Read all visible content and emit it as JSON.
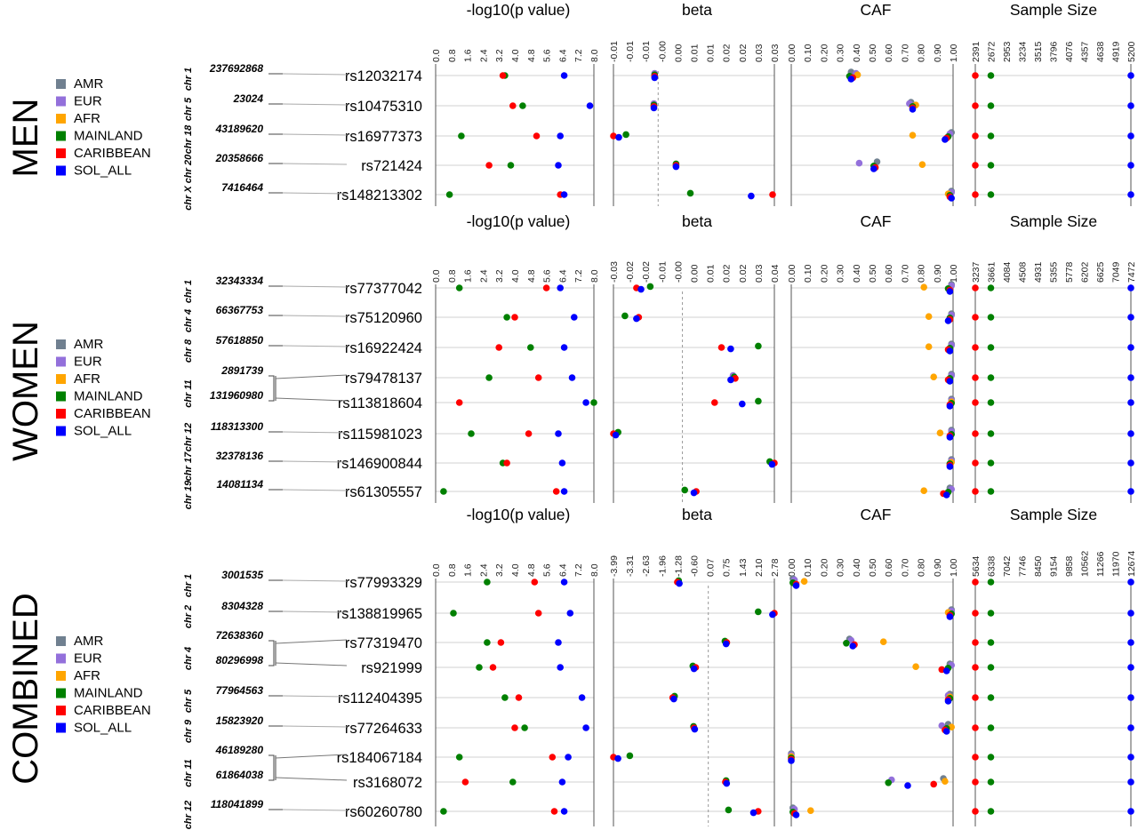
{
  "colors": {
    "AMR": "#708090",
    "EUR": "#9370DB",
    "AFR": "#FFA500",
    "MAINLAND": "#008000",
    "CARIBBEAN": "#FF0000",
    "SOL_ALL": "#0000FF"
  },
  "legend_items": [
    "AMR",
    "EUR",
    "AFR",
    "MAINLAND",
    "CARIBBEAN",
    "SOL_ALL"
  ],
  "column_titles": [
    "-log10(p value)",
    "beta",
    "CAF",
    "Sample Size"
  ],
  "chart_data": [
    {
      "type": "scatter",
      "panel": "MEN",
      "pval_ticks": [
        "0.0",
        "0.8",
        "1.6",
        "2.4",
        "3.2",
        "4.0",
        "4.8",
        "5.6",
        "6.4",
        "7.2",
        "8.0"
      ],
      "pval_lim": [
        0,
        8
      ],
      "beta_ticks": [
        "-0.01",
        "-0.01",
        "-0.01",
        "-0.00",
        "0.00",
        "0.01",
        "0.01",
        "0.02",
        "0.02",
        "0.03",
        "0.03"
      ],
      "beta_lim": [
        -0.0125,
        0.0325
      ],
      "beta_ref": 0,
      "caf_ticks": [
        "0.00",
        "0.10",
        "0.20",
        "0.30",
        "0.40",
        "0.50",
        "0.60",
        "0.70",
        "0.80",
        "0.90",
        "1.00"
      ],
      "caf_lim": [
        0,
        1
      ],
      "n_ticks": [
        "2391",
        "2672",
        "2953",
        "3234",
        "3515",
        "3796",
        "4076",
        "4357",
        "4638",
        "4919",
        "5200"
      ],
      "n_lim": [
        2391,
        5200
      ],
      "rows": [
        {
          "chr": "chr 1",
          "pos": "237692868",
          "snp": "rs12032174",
          "pval": {
            "CARIBBEAN": 3.4,
            "MAINLAND": 3.5,
            "SOL_ALL": 6.5
          },
          "beta": {
            "MAINLAND": -0.001,
            "EUR": -0.001,
            "CARIBBEAN": -0.001,
            "SOL_ALL": -0.001
          },
          "caf": {
            "MAINLAND": 0.36,
            "AMR": 0.37,
            "CARIBBEAN": 0.38,
            "SOL_ALL": 0.37,
            "EUR": 0.4,
            "AFR": 0.41
          },
          "n": {
            "CARIBBEAN": 2391,
            "MAINLAND": 2672,
            "SOL_ALL": 5200
          }
        },
        {
          "chr": "chr 5",
          "pos": "23024",
          "snp": "rs10475310",
          "pval": {
            "CARIBBEAN": 3.9,
            "MAINLAND": 4.4,
            "SOL_ALL": 7.8
          },
          "beta": {
            "MAINLAND": -0.0012,
            "CARIBBEAN": -0.0012,
            "SOL_ALL": -0.0012,
            "EUR": -0.0012
          },
          "caf": {
            "EUR": 0.73,
            "CARIBBEAN": 0.75,
            "MAINLAND": 0.75,
            "AMR": 0.74,
            "SOL_ALL": 0.75,
            "AFR": 0.77
          },
          "n": {
            "CARIBBEAN": 2391,
            "MAINLAND": 2672,
            "SOL_ALL": 5200
          }
        },
        {
          "chr": "chr 18",
          "pos": "43189620",
          "snp": "rs16977373",
          "pval": {
            "MAINLAND": 1.3,
            "CARIBBEAN": 5.1,
            "SOL_ALL": 6.3
          },
          "beta": {
            "CARIBBEAN": -0.0125,
            "SOL_ALL": -0.011,
            "MAINLAND": -0.009
          },
          "caf": {
            "AFR": 0.75,
            "SOL_ALL": 0.95,
            "CARIBBEAN": 0.96,
            "MAINLAND": 0.97,
            "EUR": 0.98,
            "AMR": 0.99
          },
          "n": {
            "CARIBBEAN": 2391,
            "MAINLAND": 2672,
            "SOL_ALL": 5200
          }
        },
        {
          "chr": "chr 20",
          "pos": "20358666",
          "snp": "rs721424",
          "pval": {
            "CARIBBEAN": 2.7,
            "MAINLAND": 3.8,
            "SOL_ALL": 6.2
          },
          "beta": {
            "MAINLAND": 0.005,
            "CARIBBEAN": 0.005,
            "SOL_ALL": 0.005
          },
          "caf": {
            "EUR": 0.42,
            "MAINLAND": 0.51,
            "SOL_ALL": 0.51,
            "CARIBBEAN": 0.52,
            "AMR": 0.53,
            "AFR": 0.81
          },
          "n": {
            "CARIBBEAN": 2391,
            "MAINLAND": 2672,
            "SOL_ALL": 5200
          }
        },
        {
          "chr": "chr X",
          "pos": "7416464",
          "snp": "rs148213302",
          "pval": {
            "MAINLAND": 0.7,
            "CARIBBEAN": 6.3,
            "SOL_ALL": 6.5
          },
          "beta": {
            "MAINLAND": 0.009,
            "SOL_ALL": 0.026,
            "CARIBBEAN": 0.032
          },
          "caf": {
            "AFR": 0.97,
            "MAINLAND": 0.98,
            "CARIBBEAN": 0.98,
            "SOL_ALL": 0.99,
            "AMR": 0.99,
            "EUR": 0.99
          },
          "n": {
            "CARIBBEAN": 2391,
            "MAINLAND": 2672,
            "SOL_ALL": 5200
          }
        }
      ]
    },
    {
      "type": "scatter",
      "panel": "WOMEN",
      "pval_ticks": [
        "0.0",
        "0.8",
        "1.6",
        "2.4",
        "3.2",
        "4.0",
        "4.8",
        "5.6",
        "6.4",
        "7.2",
        "8.0"
      ],
      "pval_lim": [
        0,
        8
      ],
      "beta_ticks": [
        "-0.03",
        "-0.02",
        "-0.02",
        "-0.01",
        "-0.00",
        "0.00",
        "0.01",
        "0.02",
        "0.02",
        "0.03",
        "0.04"
      ],
      "beta_lim": [
        -0.03,
        0.04
      ],
      "beta_ref": 0,
      "caf_ticks": [
        "0.00",
        "0.10",
        "0.20",
        "0.30",
        "0.40",
        "0.50",
        "0.60",
        "0.70",
        "0.80",
        "0.90",
        "1.00"
      ],
      "caf_lim": [
        0,
        1
      ],
      "n_ticks": [
        "3237",
        "3661",
        "4084",
        "4508",
        "4931",
        "5355",
        "5778",
        "6202",
        "6625",
        "7049",
        "7472"
      ],
      "n_lim": [
        3237,
        7472
      ],
      "rows": [
        {
          "chr": "chr 1",
          "pos": "32343334",
          "snp": "rs77377042",
          "pval": {
            "MAINLAND": 1.2,
            "CARIBBEAN": 5.6,
            "SOL_ALL": 6.3
          },
          "beta": {
            "CARIBBEAN": -0.02,
            "SOL_ALL": -0.018,
            "MAINLAND": -0.014
          },
          "caf": {
            "AFR": 0.82,
            "MAINLAND": 0.97,
            "SOL_ALL": 0.98,
            "CARIBBEAN": 0.98,
            "AMR": 0.99,
            "EUR": 0.99
          },
          "n": {
            "CARIBBEAN": 3237,
            "MAINLAND": 3661,
            "SOL_ALL": 7472
          }
        },
        {
          "chr": "chr 4",
          "pos": "66367753",
          "snp": "rs75120960",
          "pval": {
            "MAINLAND": 3.6,
            "CARIBBEAN": 4.0,
            "SOL_ALL": 7.0
          },
          "beta": {
            "MAINLAND": -0.025,
            "SOL_ALL": -0.02,
            "CARIBBEAN": -0.019
          },
          "caf": {
            "AFR": 0.85,
            "SOL_ALL": 0.97,
            "CARIBBEAN": 0.98,
            "MAINLAND": 0.98,
            "AMR": 0.99,
            "EUR": 0.99
          },
          "n": {
            "CARIBBEAN": 3237,
            "MAINLAND": 3661,
            "SOL_ALL": 7472
          }
        },
        {
          "chr": "chr 8",
          "pos": "57618850",
          "snp": "rs16922424",
          "pval": {
            "CARIBBEAN": 3.2,
            "MAINLAND": 4.8,
            "SOL_ALL": 6.5
          },
          "beta": {
            "CARIBBEAN": 0.017,
            "SOL_ALL": 0.021,
            "MAINLAND": 0.033
          },
          "caf": {
            "AFR": 0.85,
            "CARIBBEAN": 0.97,
            "SOL_ALL": 0.98,
            "MAINLAND": 0.98,
            "EUR": 0.99,
            "AMR": 0.99
          },
          "n": {
            "CARIBBEAN": 3237,
            "MAINLAND": 3661,
            "SOL_ALL": 7472
          }
        },
        {
          "chr": "chr 11",
          "pos": "2891739",
          "snp": "rs79478137",
          "pval": {
            "MAINLAND": 2.7,
            "CARIBBEAN": 5.2,
            "SOL_ALL": 6.9
          },
          "beta": {
            "SOL_ALL": 0.021,
            "EUR": 0.022,
            "MAINLAND": 0.0225,
            "CARIBBEAN": 0.023
          },
          "caf": {
            "AFR": 0.88,
            "CARIBBEAN": 0.97,
            "SOL_ALL": 0.98,
            "MAINLAND": 0.98,
            "EUR": 0.99,
            "AMR": 0.99
          },
          "n": {
            "CARIBBEAN": 3237,
            "MAINLAND": 3661,
            "SOL_ALL": 7472
          }
        },
        {
          "chr": "chr 11",
          "pos": "131960980",
          "snp": "rs113818604",
          "pval": {
            "CARIBBEAN": 1.2,
            "SOL_ALL": 7.6,
            "MAINLAND": 8.0
          },
          "beta": {
            "CARIBBEAN": 0.014,
            "SOL_ALL": 0.026,
            "MAINLAND": 0.033
          },
          "caf": {
            "SOL_ALL": 0.98,
            "CARIBBEAN": 0.98,
            "MAINLAND": 0.99,
            "EUR": 0.99,
            "AMR": 0.99,
            "AFR": 0.99
          },
          "n": {
            "CARIBBEAN": 3237,
            "MAINLAND": 3661,
            "SOL_ALL": 7472
          }
        },
        {
          "chr": "chr 12",
          "pos": "118313300",
          "snp": "rs115981023",
          "pval": {
            "MAINLAND": 1.8,
            "CARIBBEAN": 4.7,
            "SOL_ALL": 6.2
          },
          "beta": {
            "CARIBBEAN": -0.03,
            "SOL_ALL": -0.029,
            "MAINLAND": -0.028
          },
          "caf": {
            "AFR": 0.92,
            "CARIBBEAN": 0.98,
            "SOL_ALL": 0.98,
            "MAINLAND": 0.99,
            "EUR": 0.99,
            "AMR": 0.99
          },
          "n": {
            "CARIBBEAN": 3237,
            "MAINLAND": 3661,
            "SOL_ALL": 7472
          }
        },
        {
          "chr": "chr 17",
          "pos": "32378136",
          "snp": "rs146900844",
          "pval": {
            "MAINLAND": 3.4,
            "CARIBBEAN": 3.6,
            "SOL_ALL": 6.4
          },
          "beta": {
            "MAINLAND": 0.038,
            "SOL_ALL": 0.039,
            "CARIBBEAN": 0.04
          },
          "caf": {
            "CARIBBEAN": 0.98,
            "SOL_ALL": 0.98,
            "MAINLAND": 0.98,
            "EUR": 0.99,
            "AMR": 0.99,
            "AFR": 0.99
          },
          "n": {
            "CARIBBEAN": 3237,
            "MAINLAND": 3661,
            "SOL_ALL": 7472
          }
        },
        {
          "chr": "chr 19",
          "pos": "14081134",
          "snp": "rs61305557",
          "pval": {
            "MAINLAND": 0.4,
            "CARIBBEAN": 6.1,
            "SOL_ALL": 6.5
          },
          "beta": {
            "MAINLAND": 0.001,
            "SOL_ALL": 0.005,
            "CARIBBEAN": 0.006
          },
          "caf": {
            "AFR": 0.82,
            "CARIBBEAN": 0.94,
            "SOL_ALL": 0.96,
            "MAINLAND": 0.97,
            "AMR": 0.98,
            "EUR": 0.99
          },
          "n": {
            "CARIBBEAN": 3237,
            "MAINLAND": 3661,
            "SOL_ALL": 7472
          }
        }
      ]
    },
    {
      "type": "scatter",
      "panel": "COMBINED",
      "pval_ticks": [
        "0.0",
        "0.8",
        "1.6",
        "2.4",
        "3.2",
        "4.0",
        "4.8",
        "5.6",
        "6.4",
        "7.2",
        "8.0"
      ],
      "pval_lim": [
        0,
        8
      ],
      "beta_ticks": [
        "-3.99",
        "-3.31",
        "-2.63",
        "-1.96",
        "-1.28",
        "-0.60",
        "0.07",
        "0.75",
        "1.43",
        "2.10",
        "2.78"
      ],
      "beta_lim": [
        -3.99,
        2.78
      ],
      "beta_ref": 0,
      "caf_ticks": [
        "0.00",
        "0.10",
        "0.20",
        "0.30",
        "0.40",
        "0.50",
        "0.60",
        "0.70",
        "0.80",
        "0.90",
        "1.00"
      ],
      "caf_lim": [
        0,
        1
      ],
      "n_ticks": [
        "5634",
        "6338",
        "7042",
        "7746",
        "8450",
        "9154",
        "9858",
        "10562",
        "11266",
        "11970",
        "12674"
      ],
      "n_lim": [
        5634,
        12674
      ],
      "rows": [
        {
          "chr": "chr 1",
          "pos": "3001535",
          "snp": "rs77993329",
          "pval": {
            "MAINLAND": 2.6,
            "CARIBBEAN": 5.0,
            "SOL_ALL": 6.5
          },
          "beta": {
            "CARIBBEAN": -1.3,
            "MAINLAND": -1.25,
            "SOL_ALL": -1.22
          },
          "caf": {
            "AMR": 0.01,
            "EUR": 0.02,
            "MAINLAND": 0.01,
            "SOL_ALL": 0.03,
            "CARIBBEAN": 0.03,
            "AFR": 0.08
          },
          "n": {
            "CARIBBEAN": 5634,
            "MAINLAND": 6338,
            "SOL_ALL": 12674
          }
        },
        {
          "chr": "chr 2",
          "pos": "8304328",
          "snp": "rs138819965",
          "pval": {
            "MAINLAND": 0.9,
            "CARIBBEAN": 5.2,
            "SOL_ALL": 6.8
          },
          "beta": {
            "MAINLAND": 2.1,
            "SOL_ALL": 2.7,
            "CARIBBEAN": 2.78
          },
          "caf": {
            "AFR": 0.97,
            "CARIBBEAN": 0.98,
            "SOL_ALL": 0.98,
            "MAINLAND": 0.99,
            "EUR": 0.99,
            "AMR": 0.99
          },
          "n": {
            "CARIBBEAN": 5634,
            "MAINLAND": 6338,
            "SOL_ALL": 12674
          }
        },
        {
          "chr": "chr 4",
          "pos": "72638360",
          "snp": "rs77319470",
          "pval": {
            "MAINLAND": 2.6,
            "CARIBBEAN": 3.3,
            "SOL_ALL": 6.2
          },
          "beta": {
            "MAINLAND": 0.7,
            "SOL_ALL": 0.75,
            "CARIBBEAN": 0.78
          },
          "caf": {
            "MAINLAND": 0.34,
            "AMR": 0.36,
            "EUR": 0.37,
            "SOL_ALL": 0.38,
            "CARIBBEAN": 0.39,
            "AFR": 0.57
          },
          "n": {
            "CARIBBEAN": 5634,
            "MAINLAND": 6338,
            "SOL_ALL": 12674
          }
        },
        {
          "chr": "chr 4",
          "pos": "80296998",
          "snp": "rs921999",
          "pval": {
            "MAINLAND": 2.2,
            "CARIBBEAN": 2.9,
            "SOL_ALL": 6.3
          },
          "beta": {
            "MAINLAND": -0.65,
            "SOL_ALL": -0.6,
            "CARIBBEAN": -0.53
          },
          "caf": {
            "AFR": 0.77,
            "CARIBBEAN": 0.93,
            "SOL_ALL": 0.96,
            "MAINLAND": 0.97,
            "AMR": 0.98,
            "EUR": 0.99
          },
          "n": {
            "CARIBBEAN": 5634,
            "MAINLAND": 6338,
            "SOL_ALL": 12674
          }
        },
        {
          "chr": "chr 5",
          "pos": "77964563",
          "snp": "rs112404395",
          "pval": {
            "MAINLAND": 3.5,
            "CARIBBEAN": 4.2,
            "SOL_ALL": 7.4
          },
          "beta": {
            "CARIBBEAN": -1.5,
            "SOL_ALL": -1.45,
            "MAINLAND": -1.42
          },
          "caf": {
            "EUR": 0.97,
            "CARIBBEAN": 0.97,
            "SOL_ALL": 0.97,
            "MAINLAND": 0.98,
            "AMR": 0.98,
            "AFR": 0.98
          },
          "n": {
            "CARIBBEAN": 5634,
            "MAINLAND": 6338,
            "SOL_ALL": 12674
          }
        },
        {
          "chr": "chr 9",
          "pos": "15823920",
          "snp": "rs77264633",
          "pval": {
            "CARIBBEAN": 4.0,
            "MAINLAND": 4.5,
            "SOL_ALL": 7.6
          },
          "beta": {
            "MAINLAND": -0.62,
            "CARIBBEAN": -0.6,
            "SOL_ALL": -0.57
          },
          "caf": {
            "EUR": 0.93,
            "CARIBBEAN": 0.95,
            "SOL_ALL": 0.96,
            "MAINLAND": 0.96,
            "AMR": 0.97,
            "AFR": 0.99
          },
          "n": {
            "CARIBBEAN": 5634,
            "MAINLAND": 6338,
            "SOL_ALL": 12674
          }
        },
        {
          "chr": "chr 11",
          "pos": "46189280",
          "snp": "rs184067184",
          "pval": {
            "MAINLAND": 1.2,
            "CARIBBEAN": 5.9,
            "SOL_ALL": 6.7
          },
          "beta": {
            "CARIBBEAN": -3.99,
            "SOL_ALL": -3.8,
            "MAINLAND": -3.3
          },
          "caf": {
            "AMR": 0.0,
            "EUR": 0.0,
            "MAINLAND": 0.0,
            "CARIBBEAN": 0.0,
            "SOL_ALL": 0.0,
            "AFR": 0.0
          },
          "n": {
            "CARIBBEAN": 5634,
            "MAINLAND": 6338,
            "SOL_ALL": 12674
          }
        },
        {
          "chr": "chr 11",
          "pos": "61864038",
          "snp": "rs3168072",
          "pval": {
            "CARIBBEAN": 1.5,
            "MAINLAND": 3.9,
            "SOL_ALL": 6.4
          },
          "beta": {
            "CARIBBEAN": 0.72,
            "MAINLAND": 0.75,
            "SOL_ALL": 0.77
          },
          "caf": {
            "MAINLAND": 0.6,
            "EUR": 0.62,
            "SOL_ALL": 0.72,
            "CARIBBEAN": 0.88,
            "AMR": 0.94,
            "AFR": 0.95
          },
          "n": {
            "CARIBBEAN": 5634,
            "MAINLAND": 6338,
            "SOL_ALL": 12674
          }
        },
        {
          "chr": "chr 12",
          "pos": "118041899",
          "snp": "rs60260780",
          "pval": {
            "MAINLAND": 0.4,
            "CARIBBEAN": 6.0,
            "SOL_ALL": 6.5
          },
          "beta": {
            "MAINLAND": 0.85,
            "SOL_ALL": 1.9,
            "CARIBBEAN": 2.1
          },
          "caf": {
            "MAINLAND": 0.01,
            "AMR": 0.01,
            "EUR": 0.02,
            "SOL_ALL": 0.03,
            "CARIBBEAN": 0.02,
            "AFR": 0.12
          },
          "n": {
            "CARIBBEAN": 5634,
            "MAINLAND": 6338,
            "SOL_ALL": 12674
          }
        }
      ]
    }
  ]
}
